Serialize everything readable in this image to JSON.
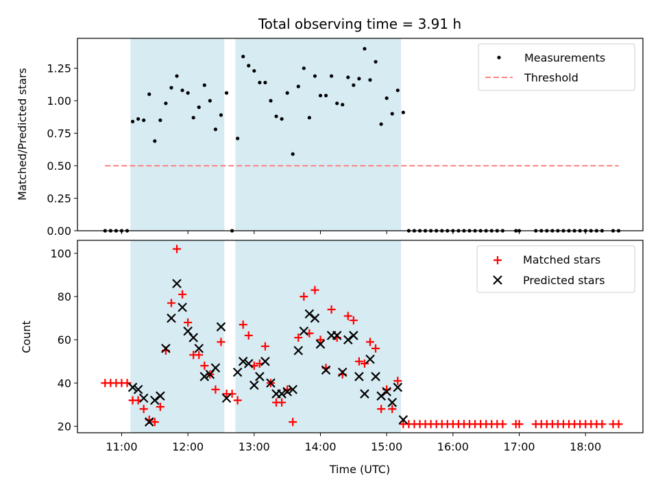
{
  "chart_data": [
    {
      "type": "scatter",
      "title": "Total observing time = 3.91 h",
      "ylabel": "Matched/Predicted stars",
      "xlabel": "",
      "ylim": [
        0,
        1.48
      ],
      "y_ticks": [
        "0.00",
        "0.25",
        "0.50",
        "0.75",
        "1.00",
        "1.25"
      ],
      "legend_position": "top-right",
      "threshold": {
        "name": "Threshold",
        "value": 0.5,
        "x_start": "10:45",
        "x_end": "18:30",
        "color": "#ff7f7f",
        "style": "dashed"
      },
      "observing_windows": [
        {
          "start": "11:08",
          "end": "12:33"
        },
        {
          "start": "12:43",
          "end": "15:13"
        }
      ],
      "series": [
        {
          "name": "Measurements",
          "color": "#000000",
          "marker": "dot",
          "x": [
            "10:45",
            "10:50",
            "10:55",
            "11:00",
            "11:05",
            "11:10",
            "11:15",
            "11:20",
            "11:25",
            "11:30",
            "11:35",
            "11:40",
            "11:45",
            "11:50",
            "11:55",
            "12:00",
            "12:05",
            "12:10",
            "12:15",
            "12:20",
            "12:25",
            "12:30",
            "12:35",
            "12:40",
            "12:45",
            "12:50",
            "12:55",
            "13:00",
            "13:05",
            "13:10",
            "13:15",
            "13:20",
            "13:25",
            "13:30",
            "13:35",
            "13:40",
            "13:45",
            "13:50",
            "13:55",
            "14:00",
            "14:05",
            "14:10",
            "14:15",
            "14:20",
            "14:25",
            "14:30",
            "14:35",
            "14:40",
            "14:45",
            "14:50",
            "14:55",
            "15:00",
            "15:05",
            "15:10",
            "15:15",
            "15:20",
            "15:25",
            "15:30",
            "15:35",
            "15:40",
            "15:45",
            "15:50",
            "15:55",
            "16:00",
            "16:05",
            "16:10",
            "16:15",
            "16:20",
            "16:25",
            "16:30",
            "16:35",
            "16:40",
            "16:45",
            "16:57",
            "17:00",
            "17:15",
            "17:20",
            "17:25",
            "17:30",
            "17:35",
            "17:40",
            "17:45",
            "17:50",
            "17:55",
            "18:00",
            "18:05",
            "18:10",
            "18:15",
            "18:25",
            "18:30"
          ],
          "y": [
            0,
            0,
            0,
            0,
            0,
            0.84,
            0.86,
            0.85,
            1.05,
            0.69,
            0.85,
            0.98,
            1.1,
            1.19,
            1.08,
            1.06,
            0.87,
            0.95,
            1.12,
            1.0,
            0.78,
            0.89,
            1.06,
            0,
            0.71,
            1.34,
            1.27,
            1.23,
            1.14,
            1.14,
            1.0,
            0.88,
            0.86,
            1.06,
            0.59,
            1.11,
            1.25,
            0.87,
            1.19,
            1.04,
            1.04,
            1.19,
            0.98,
            0.97,
            1.18,
            1.12,
            1.17,
            1.4,
            1.16,
            1.3,
            0.82,
            1.02,
            0.9,
            1.08,
            0.91,
            0,
            0,
            0,
            0,
            0,
            0,
            0,
            0,
            0,
            0,
            0,
            0,
            0,
            0,
            0,
            0,
            0,
            0,
            0,
            0,
            0,
            0,
            0,
            0,
            0,
            0,
            0,
            0,
            0,
            0,
            0,
            0,
            0,
            0,
            0
          ]
        }
      ]
    },
    {
      "type": "scatter",
      "title": "",
      "ylabel": "Count",
      "xlabel": "Time (UTC)",
      "ylim": [
        17,
        106
      ],
      "xlim": [
        "10:20",
        "18:52"
      ],
      "y_ticks": [
        "20",
        "40",
        "60",
        "80",
        "100"
      ],
      "x_ticks": [
        "11:00",
        "12:00",
        "13:00",
        "14:00",
        "15:00",
        "16:00",
        "17:00",
        "18:00"
      ],
      "legend_position": "top-right",
      "observing_windows": [
        {
          "start": "11:08",
          "end": "12:33"
        },
        {
          "start": "12:43",
          "end": "15:13"
        }
      ],
      "series": [
        {
          "name": "Matched stars",
          "color": "#ff0000",
          "marker": "plus",
          "x": [
            "10:45",
            "10:50",
            "10:55",
            "11:00",
            "11:05",
            "11:10",
            "11:15",
            "11:20",
            "11:25",
            "11:30",
            "11:35",
            "11:40",
            "11:45",
            "11:50",
            "11:55",
            "12:00",
            "12:05",
            "12:10",
            "12:15",
            "12:20",
            "12:25",
            "12:30",
            "12:35",
            "12:40",
            "12:45",
            "12:50",
            "12:55",
            "13:00",
            "13:05",
            "13:10",
            "13:15",
            "13:20",
            "13:25",
            "13:30",
            "13:35",
            "13:40",
            "13:45",
            "13:50",
            "13:55",
            "14:00",
            "14:05",
            "14:10",
            "14:15",
            "14:20",
            "14:25",
            "14:30",
            "14:35",
            "14:40",
            "14:45",
            "14:50",
            "14:55",
            "15:00",
            "15:05",
            "15:10",
            "15:15",
            "15:20",
            "15:25",
            "15:30",
            "15:35",
            "15:40",
            "15:45",
            "15:50",
            "15:55",
            "16:00",
            "16:05",
            "16:10",
            "16:15",
            "16:20",
            "16:25",
            "16:30",
            "16:35",
            "16:40",
            "16:45",
            "16:57",
            "17:00",
            "17:15",
            "17:20",
            "17:25",
            "17:30",
            "17:35",
            "17:40",
            "17:45",
            "17:50",
            "17:55",
            "18:00",
            "18:05",
            "18:10",
            "18:15",
            "18:25",
            "18:30"
          ],
          "y": [
            40,
            40,
            40,
            40,
            40,
            32,
            32,
            28,
            23,
            22,
            29,
            55,
            77,
            102,
            81,
            68,
            53,
            53,
            48,
            44,
            37,
            59,
            35,
            35,
            32,
            67,
            62,
            48,
            49,
            57,
            40,
            31,
            31,
            37,
            22,
            61,
            80,
            63,
            83,
            60,
            47,
            74,
            61,
            44,
            71,
            69,
            50,
            49,
            59,
            56,
            28,
            37,
            28,
            41,
            21,
            21,
            21,
            21,
            21,
            21,
            21,
            21,
            21,
            21,
            21,
            21,
            21,
            21,
            21,
            21,
            21,
            21,
            21,
            21,
            21,
            21,
            21,
            21,
            21,
            21,
            21,
            21,
            21,
            21,
            21,
            21,
            21,
            21,
            21,
            21
          ]
        },
        {
          "name": "Predicted stars",
          "color": "#000000",
          "marker": "x",
          "x": [
            "11:10",
            "11:15",
            "11:20",
            "11:25",
            "11:30",
            "11:35",
            "11:40",
            "11:45",
            "11:50",
            "11:55",
            "12:00",
            "12:05",
            "12:10",
            "12:15",
            "12:20",
            "12:25",
            "12:30",
            "12:35",
            "12:45",
            "12:50",
            "12:55",
            "13:00",
            "13:05",
            "13:10",
            "13:15",
            "13:20",
            "13:25",
            "13:30",
            "13:35",
            "13:40",
            "13:45",
            "13:50",
            "13:55",
            "14:00",
            "14:05",
            "14:10",
            "14:15",
            "14:20",
            "14:25",
            "14:30",
            "14:35",
            "14:40",
            "14:45",
            "14:50",
            "14:55",
            "15:00",
            "15:05",
            "15:10",
            "15:15"
          ],
          "y": [
            38,
            37,
            33,
            22,
            32,
            34,
            56,
            70,
            86,
            75,
            64,
            61,
            56,
            43,
            44,
            47,
            66,
            33,
            45,
            50,
            49,
            39,
            43,
            50,
            40,
            35,
            35,
            36,
            37,
            55,
            64,
            72,
            70,
            58,
            46,
            62,
            62,
            45,
            60,
            62,
            43,
            35,
            51,
            43,
            34,
            36,
            31,
            38,
            23
          ]
        }
      ]
    }
  ]
}
